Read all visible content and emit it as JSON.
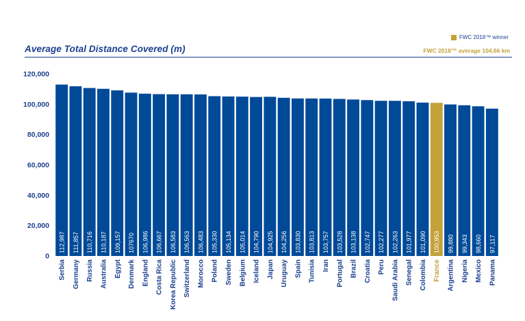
{
  "legend": {
    "label": "FWC 2018™ winner",
    "color": "#c4a23a"
  },
  "average_note": "FWC 2018™ average 104,66 km",
  "colors": {
    "bar": "#004a98",
    "highlight": "#c4a23a",
    "text": "#1a3f8f"
  },
  "chart_data": {
    "type": "bar",
    "title": "Average Total Distance Covered (m)",
    "xlabel": "",
    "ylabel": "",
    "ylim": [
      0,
      120000
    ],
    "yticks": [
      "0",
      "20,000",
      "40,000",
      "60,000",
      "80,000",
      "100,000",
      "120,000"
    ],
    "ytick_values": [
      0,
      20000,
      40000,
      60000,
      80000,
      100000,
      120000
    ],
    "highlight": "France",
    "categories": [
      "Serbia",
      "Germany",
      "Russia",
      "Australia",
      "Egypt",
      "Denmark",
      "England",
      "Costa Rica",
      "Korea Republic",
      "Switzerland",
      "Morocco",
      "Poland",
      "Sweden",
      "Belgium",
      "Iceland",
      "Japan",
      "Uruguay",
      "Spain",
      "Tunisia",
      "Iran",
      "Portugal",
      "Brazil",
      "Croatia",
      "Peru",
      "Saudi Arabia",
      "Senegal",
      "Colombia",
      "France",
      "Argentina",
      "Nigeria",
      "Mexico",
      "Panama"
    ],
    "values": [
      112987,
      111857,
      110716,
      110187,
      109157,
      107670,
      106986,
      106667,
      106583,
      106563,
      106483,
      105330,
      105134,
      105014,
      104790,
      104925,
      104256,
      103830,
      103813,
      103757,
      103528,
      103138,
      102747,
      102277,
      102263,
      101977,
      101090,
      100953,
      99880,
      99343,
      98660,
      97117
    ],
    "value_labels": [
      "112,987",
      "111,857",
      "110,716",
      "110,187",
      "109,157",
      "107670",
      "106,986",
      "106,667",
      "106,583",
      "106,563",
      "106,483",
      "105,330",
      "105,134",
      "105,014",
      "104,790",
      "104,925",
      "104,256",
      "103,830",
      "103,813",
      "103,757",
      "103,528",
      "103,138",
      "102,747",
      "102,277",
      "102,263",
      "101,977",
      "101,090",
      "100,953",
      "99,880",
      "99,343",
      "98,660",
      "97,117"
    ],
    "grid": false,
    "legend_position": "top-right"
  }
}
